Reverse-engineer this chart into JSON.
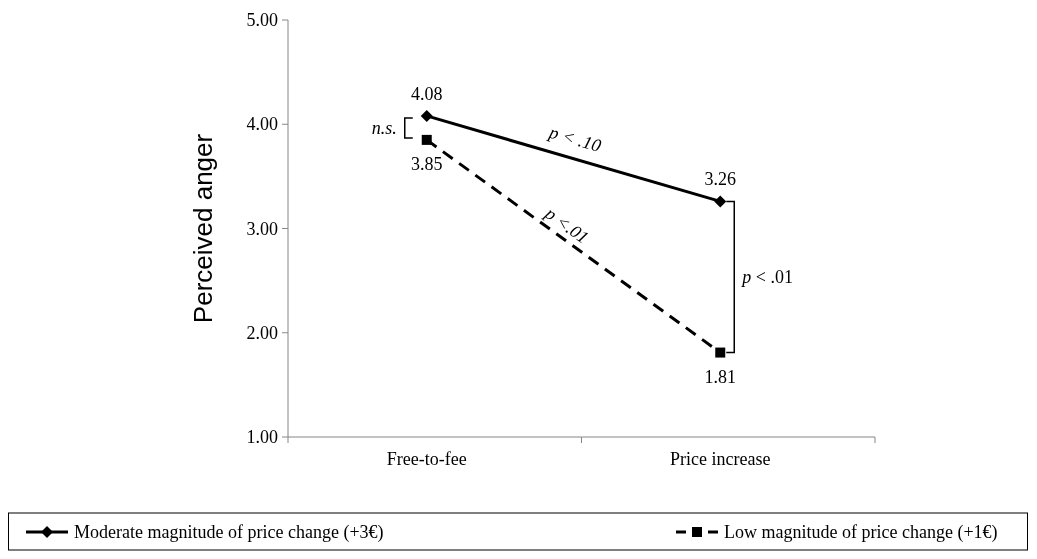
{
  "chart_data": {
    "type": "line",
    "ylabel": "Perceived anger",
    "categories": [
      "Free-to-fee",
      "Price increase"
    ],
    "series": [
      {
        "name": "Moderate magnitude of price change (+3€)",
        "color": "#000000",
        "values": [
          4.08,
          3.26
        ],
        "marker": "diamond",
        "line_style": "solid"
      },
      {
        "name": "Low magnitude of price change (+1€)",
        "color": "#000000",
        "values": [
          3.85,
          1.81
        ],
        "marker": "square",
        "line_style": "dashed"
      }
    ],
    "ylim": [
      1,
      5
    ],
    "yticks": [
      {
        "value": 1,
        "label": "1.00"
      },
      {
        "value": 2,
        "label": "2.00"
      },
      {
        "value": 3,
        "label": "3.00"
      },
      {
        "value": 4,
        "label": "4.00"
      },
      {
        "value": 5,
        "label": "5.00"
      }
    ],
    "data_labels": true,
    "grid": false,
    "legend": "bottom",
    "annotations": [
      "n.s.",
      "p < .10",
      "p <.01",
      "p < .01"
    ]
  }
}
